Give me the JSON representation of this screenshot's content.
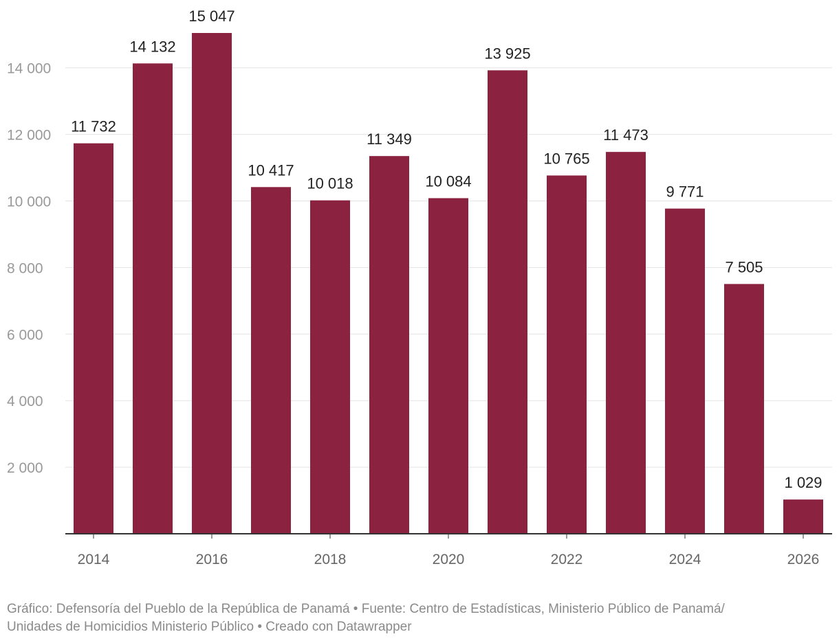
{
  "chart_data": {
    "type": "bar",
    "categories": [
      "2014",
      "2015",
      "2016",
      "2017",
      "2018",
      "2019",
      "2020",
      "2021",
      "2022",
      "2023",
      "2024",
      "2025",
      "2026"
    ],
    "values": [
      11732,
      14132,
      15047,
      10417,
      10018,
      11349,
      10084,
      13925,
      10765,
      11473,
      9771,
      7505,
      1029
    ],
    "value_labels": [
      "11 732",
      "14 132",
      "15 047",
      "10 417",
      "10 018",
      "11 349",
      "10 084",
      "13 925",
      "10 765",
      "11 473",
      "9 771",
      "7 505",
      "1 029"
    ],
    "x_tick_labels": [
      "2014",
      "2016",
      "2018",
      "2020",
      "2022",
      "2024",
      "2026"
    ],
    "y_ticks": [
      2000,
      4000,
      6000,
      8000,
      10000,
      12000,
      14000
    ],
    "y_tick_labels": [
      "2 000",
      "4 000",
      "6 000",
      "8 000",
      "10 000",
      "12 000",
      "14 000"
    ],
    "ylim": [
      0,
      15047
    ],
    "bar_color": "#8b2240",
    "grid": true,
    "title": "",
    "xlabel": "",
    "ylabel": ""
  },
  "footer": {
    "line1": "Gráfico: Defensoría del Pueblo de la República de Panamá • Fuente: Centro de Estadísticas, Ministerio Público de Panamá/",
    "line2": "Unidades de Homicidios Ministerio Público • Creado con Datawrapper"
  }
}
